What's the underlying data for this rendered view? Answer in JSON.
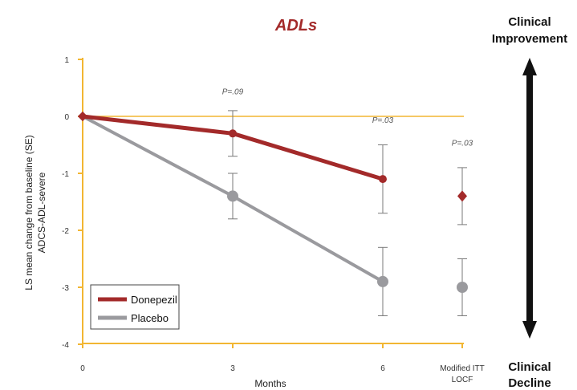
{
  "chart_data": {
    "type": "line",
    "title": "ADLs",
    "xlabel": "Months",
    "ylabel_line1": "LS mean change from baseline (SE)",
    "ylabel_line2": "ADCS-ADL-severe",
    "ylim": [
      -4,
      1
    ],
    "yticks": [
      "1",
      "0",
      "-1",
      "-2",
      "-3",
      "-4"
    ],
    "yticks_values": [
      1,
      0,
      -1,
      -2,
      -3,
      -4
    ],
    "xtick_labels": [
      "0",
      "3",
      "6"
    ],
    "xtick_values": [
      0,
      3,
      6
    ],
    "extra_tick_line1": "Modified ITT",
    "extra_tick_line2": "LOCF",
    "series": [
      {
        "name": "Donepezil",
        "color": "#a32a2a",
        "x": [
          0,
          3,
          6
        ],
        "values": [
          0,
          -0.3,
          -1.1
        ],
        "err": [
          0,
          0.4,
          0.6
        ],
        "locf_value": -1.4,
        "locf_err": 0.5
      },
      {
        "name": "Placebo",
        "color": "#9a9a9e",
        "x": [
          0,
          3,
          6
        ],
        "values": [
          0,
          -1.4,
          -2.9
        ],
        "err": [
          0,
          0.4,
          0.6
        ],
        "locf_value": -3.0,
        "locf_err": 0.5
      }
    ],
    "p_values": [
      {
        "text": "P=.09",
        "at": "3"
      },
      {
        "text": "P=.03",
        "at": "6"
      },
      {
        "text": "P=.03",
        "at": "Modified ITT LOCF"
      }
    ],
    "legend_position": "bottom-left",
    "axis_color": "#f2b632",
    "zero_line_color": "#f2b632",
    "side_top_line1": "Clinical",
    "side_top_line2": "Improvement",
    "side_bottom_line1": "Clinical",
    "side_bottom_line2": "Decline"
  }
}
